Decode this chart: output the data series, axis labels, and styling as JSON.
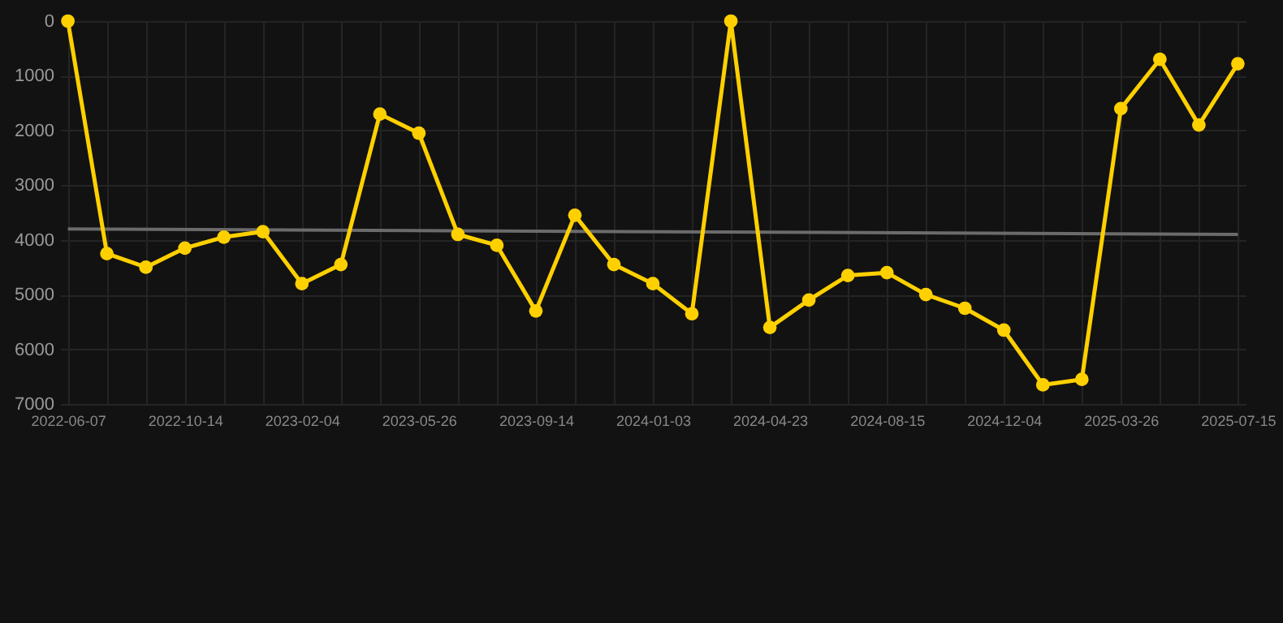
{
  "chart_data": {
    "type": "line",
    "categories": [
      "2022-06-07",
      null,
      null,
      "2022-10-14",
      null,
      null,
      "2023-02-04",
      null,
      null,
      "2023-05-26",
      null,
      null,
      "2023-09-14",
      null,
      null,
      "2024-01-03",
      null,
      null,
      "2024-04-23",
      null,
      null,
      "2024-08-15",
      null,
      null,
      "2024-12-04",
      null,
      null,
      "2025-03-26",
      null,
      null,
      "2025-07-15"
    ],
    "series": [
      {
        "color": "#ffd000",
        "values": [
          0,
          4250,
          4500,
          4150,
          3950,
          3850,
          4800,
          4450,
          1700,
          2050,
          3900,
          4100,
          5300,
          3550,
          4450,
          4800,
          5350,
          0,
          5600,
          5100,
          4650,
          4600,
          5000,
          5250,
          5650,
          6650,
          6550,
          1600,
          700,
          1900,
          780
        ]
      },
      {
        "type": "line",
        "color": "#6b6b6b",
        "values": [
          3800,
          null,
          null,
          null,
          null,
          null,
          null,
          null,
          null,
          null,
          null,
          null,
          null,
          null,
          null,
          null,
          null,
          null,
          null,
          null,
          null,
          null,
          null,
          null,
          null,
          null,
          null,
          null,
          null,
          null,
          3900
        ],
        "marker": "none"
      }
    ],
    "ylim": [
      7000,
      0
    ],
    "yticks": [
      0,
      1000,
      2000,
      3000,
      4000,
      5000,
      6000,
      7000
    ],
    "grid": true,
    "marker": "circle"
  }
}
